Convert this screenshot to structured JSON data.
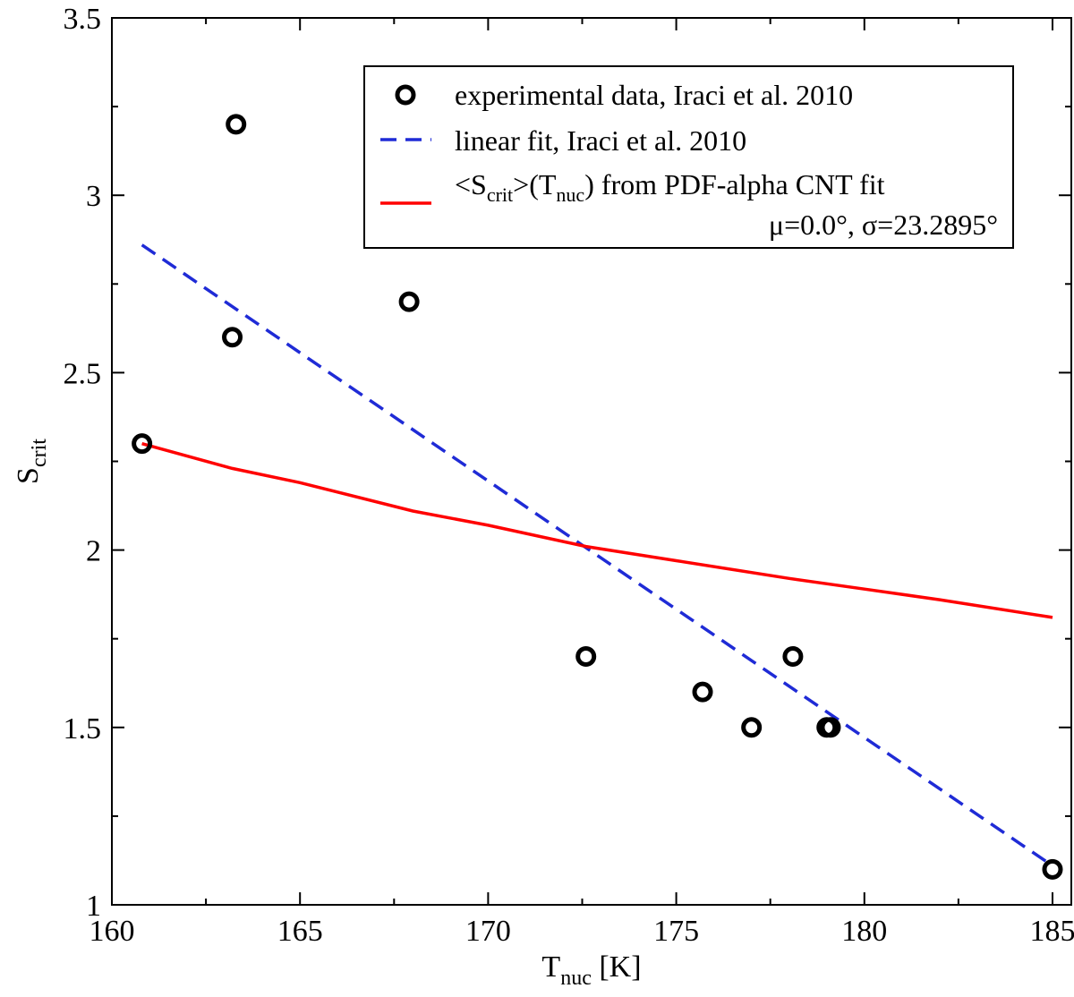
{
  "chart_data": {
    "type": "scatter",
    "title": "",
    "xlabel": {
      "main": "T",
      "sub": "nuc",
      "suffix": " [K]"
    },
    "ylabel": {
      "main": "S",
      "sub": "crit"
    },
    "xlim": [
      160,
      185.5
    ],
    "ylim": [
      1,
      3.5
    ],
    "xticks": [
      160,
      165,
      170,
      175,
      180,
      185
    ],
    "yticks": [
      1,
      1.5,
      2,
      2.5,
      3,
      3.5
    ],
    "xtick_labels": [
      "160",
      "165",
      "170",
      "175",
      "180",
      "185"
    ],
    "ytick_labels": [
      "1",
      "1.5",
      "2",
      "2.5",
      "3",
      "3.5"
    ],
    "grid": false,
    "legend_position": "top-right",
    "series": [
      {
        "name": "experimental data, Iraci et al. 2010",
        "kind": "scatter",
        "marker": "open-circle",
        "color": "#000000",
        "x": [
          160.8,
          163.2,
          163.3,
          167.9,
          172.6,
          175.7,
          177.0,
          178.1,
          179.0,
          179.1,
          185.0
        ],
        "y": [
          2.3,
          2.6,
          3.2,
          2.7,
          1.7,
          1.6,
          1.5,
          1.7,
          1.5,
          1.5,
          1.1
        ]
      },
      {
        "name": "linear fit, Iraci et al. 2010",
        "kind": "line",
        "style": "dashed",
        "color": "#1f2bd6",
        "x": [
          160.8,
          185.0
        ],
        "y": [
          2.86,
          1.11
        ]
      },
      {
        "name_parts": [
          "<S",
          "crit",
          ">(T",
          "nuc",
          ") from PDF-alpha CNT fit"
        ],
        "name_line2": "μ=0.0°, σ=23.2895°",
        "kind": "line",
        "style": "solid",
        "color": "#ff0000",
        "x": [
          160.8,
          163.2,
          165.0,
          168.0,
          170.0,
          172.6,
          175.0,
          178.0,
          180.0,
          182.0,
          185.0
        ],
        "y": [
          2.3,
          2.23,
          2.19,
          2.11,
          2.07,
          2.01,
          1.97,
          1.92,
          1.89,
          1.86,
          1.81
        ]
      }
    ]
  }
}
